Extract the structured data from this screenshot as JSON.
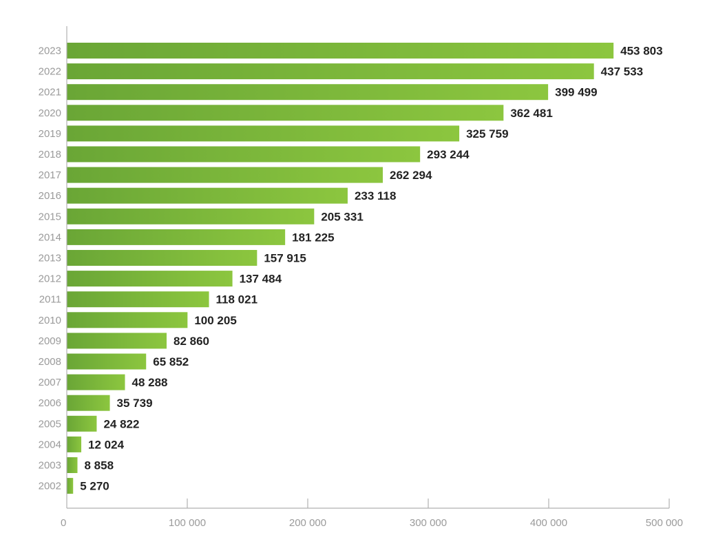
{
  "chart_data": {
    "type": "bar",
    "orientation": "horizontal",
    "title": "",
    "xlabel": "",
    "ylabel": "",
    "categories": [
      "2023",
      "2022",
      "2021",
      "2020",
      "2019",
      "2018",
      "2017",
      "2016",
      "2015",
      "2014",
      "2013",
      "2012",
      "2011",
      "2010",
      "2009",
      "2008",
      "2007",
      "2006",
      "2005",
      "2004",
      "2003",
      "2002"
    ],
    "values": [
      453803,
      437533,
      399499,
      362481,
      325759,
      293244,
      262294,
      233118,
      205331,
      181225,
      157915,
      137484,
      118021,
      100205,
      82860,
      65852,
      48288,
      35739,
      24822,
      12024,
      8858,
      5270
    ],
    "value_labels": [
      "453 803",
      "437 533",
      "399 499",
      "362 481",
      "325 759",
      "293 244",
      "262 294",
      "233 118",
      "205 331",
      "181 225",
      "157 915",
      "137 484",
      "118 021",
      "100 205",
      "82 860",
      "65 852",
      "48 288",
      "35 739",
      "24 822",
      "12 024",
      "8 858",
      "5 270"
    ],
    "xlim": [
      0,
      500000
    ],
    "x_ticks": [
      0,
      100000,
      200000,
      300000,
      400000,
      500000
    ],
    "x_tick_labels": [
      "0",
      "100 000",
      "200 000",
      "300 000",
      "400 000",
      "500 000"
    ],
    "grid": false,
    "legend": "none",
    "colors": {
      "bar_dark": "#6aa636",
      "bar_light": "#8cc63f",
      "axis": "#b0b0b0",
      "label": "#9a9a9a",
      "value": "#222222"
    }
  }
}
